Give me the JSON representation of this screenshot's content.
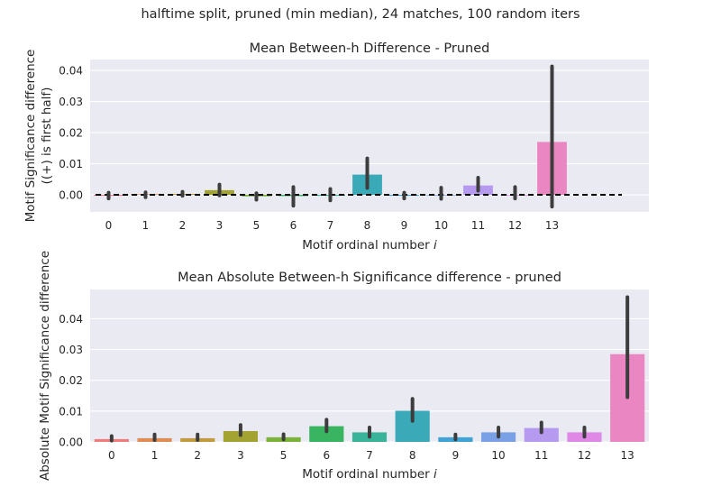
{
  "figure": {
    "suptitle": "halftime split, pruned (min median), 24 matches, 100 random iters"
  },
  "colors": {
    "background": "#ffffff",
    "axes_face": "#eaeaf2",
    "grid": "#ffffff",
    "error_bar": "#3d3d3d",
    "zero_line": "#000000",
    "palette": [
      "#f07b7b",
      "#e08c55",
      "#c39a3f",
      "#a3a332",
      "#7bb239",
      "#39b562",
      "#39b39a",
      "#3aa9b8",
      "#3fa3d4",
      "#7aa0e6",
      "#b59af0",
      "#e088e6",
      "#ea86c1"
    ]
  },
  "chart_data": [
    {
      "type": "bar",
      "title": "Mean Between-h Difference - Pruned",
      "xlabel": "Motif ordinal number ",
      "xlabel_italic": "i",
      "ylabel": "Motif Significance difference",
      "ylabel_line2": "((+) is first half)",
      "categories": [
        "0",
        "1",
        "2",
        "3",
        "5",
        "6",
        "7",
        "8",
        "9",
        "10",
        "11",
        "12",
        "13"
      ],
      "values": [
        -0.0003,
        0.0002,
        0.0003,
        0.0015,
        -0.0005,
        -0.0004,
        -0.0003,
        0.0065,
        -0.0003,
        -0.0002,
        0.003,
        -0.0002,
        0.017
      ],
      "ci_low": [
        -0.0012,
        -0.0008,
        -0.0003,
        -0.0002,
        -0.0016,
        -0.0035,
        -0.0018,
        0.0022,
        -0.0012,
        -0.0013,
        0.0013,
        -0.0012,
        -0.0038
      ],
      "ci_high": [
        0.0007,
        0.0008,
        0.001,
        0.0033,
        0.0005,
        0.0025,
        0.0019,
        0.0117,
        0.0007,
        0.0023,
        0.0055,
        0.0025,
        0.0413
      ],
      "ylim": [
        -0.0055,
        0.0435
      ],
      "yticks": [
        0.0,
        0.01,
        0.02,
        0.03,
        0.04
      ],
      "ytick_labels": [
        "0.00",
        "0.01",
        "0.02",
        "0.03",
        "0.04"
      ],
      "zero_line": "dashed",
      "grid": true
    },
    {
      "type": "bar",
      "title": "Mean Absolute Between-h Significance difference - pruned",
      "xlabel": "Motif ordinal number ",
      "xlabel_italic": "i",
      "ylabel": "Absolute Motif Significance difference",
      "categories": [
        "0",
        "1",
        "2",
        "3",
        "5",
        "6",
        "7",
        "8",
        "9",
        "10",
        "11",
        "12",
        "13"
      ],
      "values": [
        0.0009,
        0.0012,
        0.0012,
        0.0035,
        0.0015,
        0.0051,
        0.0031,
        0.0101,
        0.0015,
        0.0031,
        0.0045,
        0.0031,
        0.0285
      ],
      "ci_low": [
        0.0004,
        0.0006,
        0.0006,
        0.0022,
        0.0008,
        0.0034,
        0.0017,
        0.0068,
        0.0008,
        0.0017,
        0.0031,
        0.0017,
        0.0145
      ],
      "ci_high": [
        0.0019,
        0.0024,
        0.0024,
        0.0055,
        0.0025,
        0.0072,
        0.0047,
        0.014,
        0.0024,
        0.0047,
        0.0063,
        0.0047,
        0.047
      ],
      "ylim": [
        0.0,
        0.0495
      ],
      "yticks": [
        0.0,
        0.01,
        0.02,
        0.03,
        0.04
      ],
      "ytick_labels": [
        "0.00",
        "0.01",
        "0.02",
        "0.03",
        "0.04"
      ],
      "zero_line": "none",
      "grid": true
    }
  ]
}
